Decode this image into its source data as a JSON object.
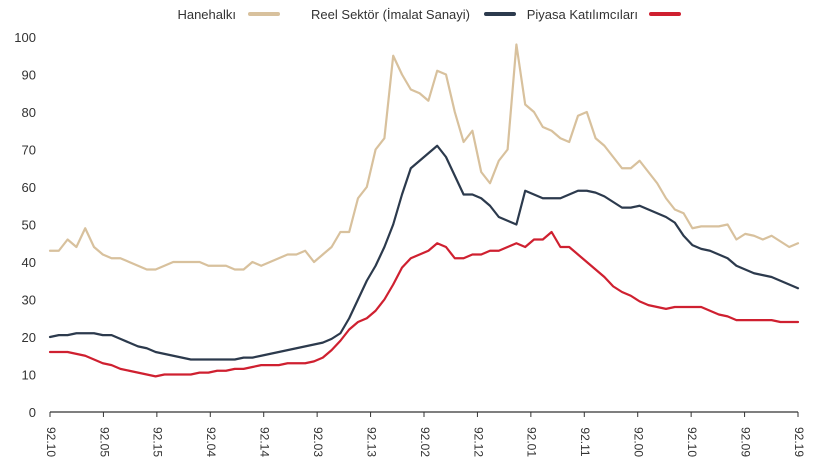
{
  "chart_data": {
    "type": "line",
    "title": "",
    "xlabel": "",
    "ylabel": "",
    "ylim": [
      0,
      100
    ],
    "yticks": [
      0,
      10,
      20,
      30,
      40,
      50,
      60,
      70,
      80,
      90,
      100
    ],
    "grid": false,
    "mirrored": true,
    "legend_position": "top",
    "x_tick_labels": [
      "92.10",
      "92.05",
      "92.15",
      "92.04",
      "92.14",
      "92.03",
      "92.13",
      "92.02",
      "92.12",
      "92.01",
      "92.11",
      "92.00",
      "92.10",
      "92.09",
      "92.19"
    ],
    "series": [
      {
        "name": "Hanehalkı",
        "color": "#d8c19d",
        "values": [
          45,
          44,
          45.5,
          47,
          46,
          47,
          47.5,
          46,
          50,
          49.5,
          49.5,
          49.5,
          49,
          53,
          54,
          57,
          61,
          64,
          67,
          65,
          65,
          68,
          71,
          73,
          80,
          79,
          72,
          73,
          75,
          76,
          80,
          82,
          98,
          70,
          67,
          61,
          64,
          75,
          72,
          80,
          90,
          91,
          83,
          85,
          86,
          90,
          95,
          73,
          70,
          60,
          57,
          48,
          48,
          44,
          42,
          40,
          43,
          42,
          42,
          41,
          40,
          39,
          40,
          38,
          38,
          39,
          39,
          39,
          40,
          40,
          40,
          40,
          39,
          38,
          38,
          39,
          40,
          41,
          41,
          42,
          44,
          49,
          44,
          46,
          43,
          43
        ]
      },
      {
        "name": "Reel Sektör (İmalat Sanayi)",
        "color": "#2c3a4d",
        "values": [
          33,
          34,
          35,
          36,
          36.5,
          37,
          38,
          39,
          41,
          42,
          43,
          43.5,
          44.5,
          47,
          50.5,
          52,
          53,
          54,
          55,
          54.5,
          54.5,
          56,
          57.5,
          58.5,
          59,
          59,
          58,
          57,
          57,
          57,
          58,
          59,
          50,
          51,
          52,
          55,
          57,
          58,
          58,
          63,
          68,
          71,
          69,
          67,
          65,
          58,
          50,
          44,
          39,
          35,
          30,
          25,
          21,
          19.5,
          18.5,
          18,
          17.5,
          17,
          16.5,
          16,
          15.5,
          15,
          14.5,
          14.5,
          14,
          14,
          14,
          14,
          14,
          14,
          14.5,
          15,
          15.5,
          16,
          17,
          17.5,
          18.5,
          19.5,
          20.5,
          20.5,
          21,
          21,
          21,
          20.5,
          20.5,
          20
        ]
      },
      {
        "name": "Piyasa Katılımcıları",
        "color": "#cf2030",
        "values": [
          24,
          24,
          24,
          24.5,
          24.5,
          24.5,
          24.5,
          24.5,
          25.5,
          26,
          27,
          28,
          28,
          28,
          28,
          27.5,
          28,
          28.5,
          29.5,
          31,
          32,
          33.5,
          36,
          38,
          40,
          42,
          44,
          44,
          48,
          46,
          46,
          44,
          45,
          44,
          43,
          43,
          42,
          42,
          41,
          41,
          44,
          45,
          43,
          42,
          41,
          38.5,
          34,
          30,
          27,
          25,
          24,
          22,
          19,
          16.5,
          14.5,
          13.5,
          13,
          13,
          13,
          12.5,
          12.5,
          12.5,
          12,
          11.5,
          11.5,
          11,
          11,
          10.5,
          10.5,
          10,
          10,
          10,
          10,
          9.5,
          10,
          10.5,
          11,
          11.5,
          12.5,
          13,
          14,
          15,
          15.5,
          16,
          16,
          16
        ]
      }
    ]
  }
}
